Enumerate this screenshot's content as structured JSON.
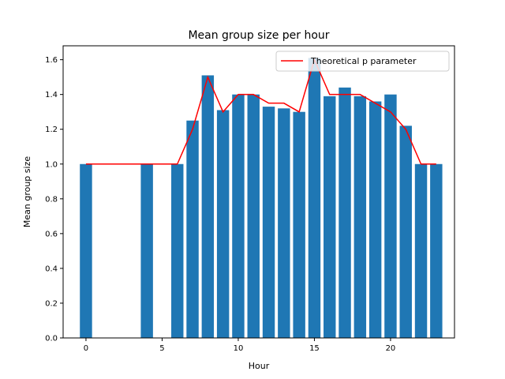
{
  "chart_data": {
    "type": "bar",
    "title": "Mean group size per hour",
    "xlabel": "Hour",
    "ylabel": "Mean group size",
    "xlim": [
      -1.5,
      24.2
    ],
    "ylim": [
      0.0,
      1.68
    ],
    "xticks": [
      0,
      5,
      10,
      15,
      20
    ],
    "yticks": [
      0.0,
      0.2,
      0.4,
      0.6,
      0.8,
      1.0,
      1.2,
      1.4,
      1.6
    ],
    "grid": false,
    "legend_position": "top-right",
    "bar_color": "#1f77b4",
    "line_color": "#ff0000",
    "series": [
      {
        "kind": "bar",
        "x": [
          0,
          4,
          6,
          7,
          8,
          9,
          10,
          11,
          12,
          13,
          14,
          15,
          16,
          17,
          18,
          19,
          20,
          21,
          22,
          23
        ],
        "values": [
          1.0,
          1.0,
          1.0,
          1.25,
          1.51,
          1.31,
          1.4,
          1.4,
          1.33,
          1.32,
          1.3,
          1.61,
          1.39,
          1.44,
          1.39,
          1.36,
          1.4,
          1.22,
          1.0,
          1.0
        ]
      },
      {
        "kind": "line",
        "name": "Theoretical p parameter",
        "x": [
          0,
          4,
          6,
          7,
          8,
          9,
          10,
          11,
          12,
          13,
          14,
          15,
          16,
          17,
          18,
          19,
          20,
          21,
          22,
          23
        ],
        "values": [
          1.0,
          1.0,
          1.0,
          1.2,
          1.5,
          1.3,
          1.4,
          1.4,
          1.35,
          1.35,
          1.3,
          1.6,
          1.4,
          1.4,
          1.4,
          1.35,
          1.3,
          1.2,
          1.0,
          1.0
        ]
      }
    ]
  }
}
